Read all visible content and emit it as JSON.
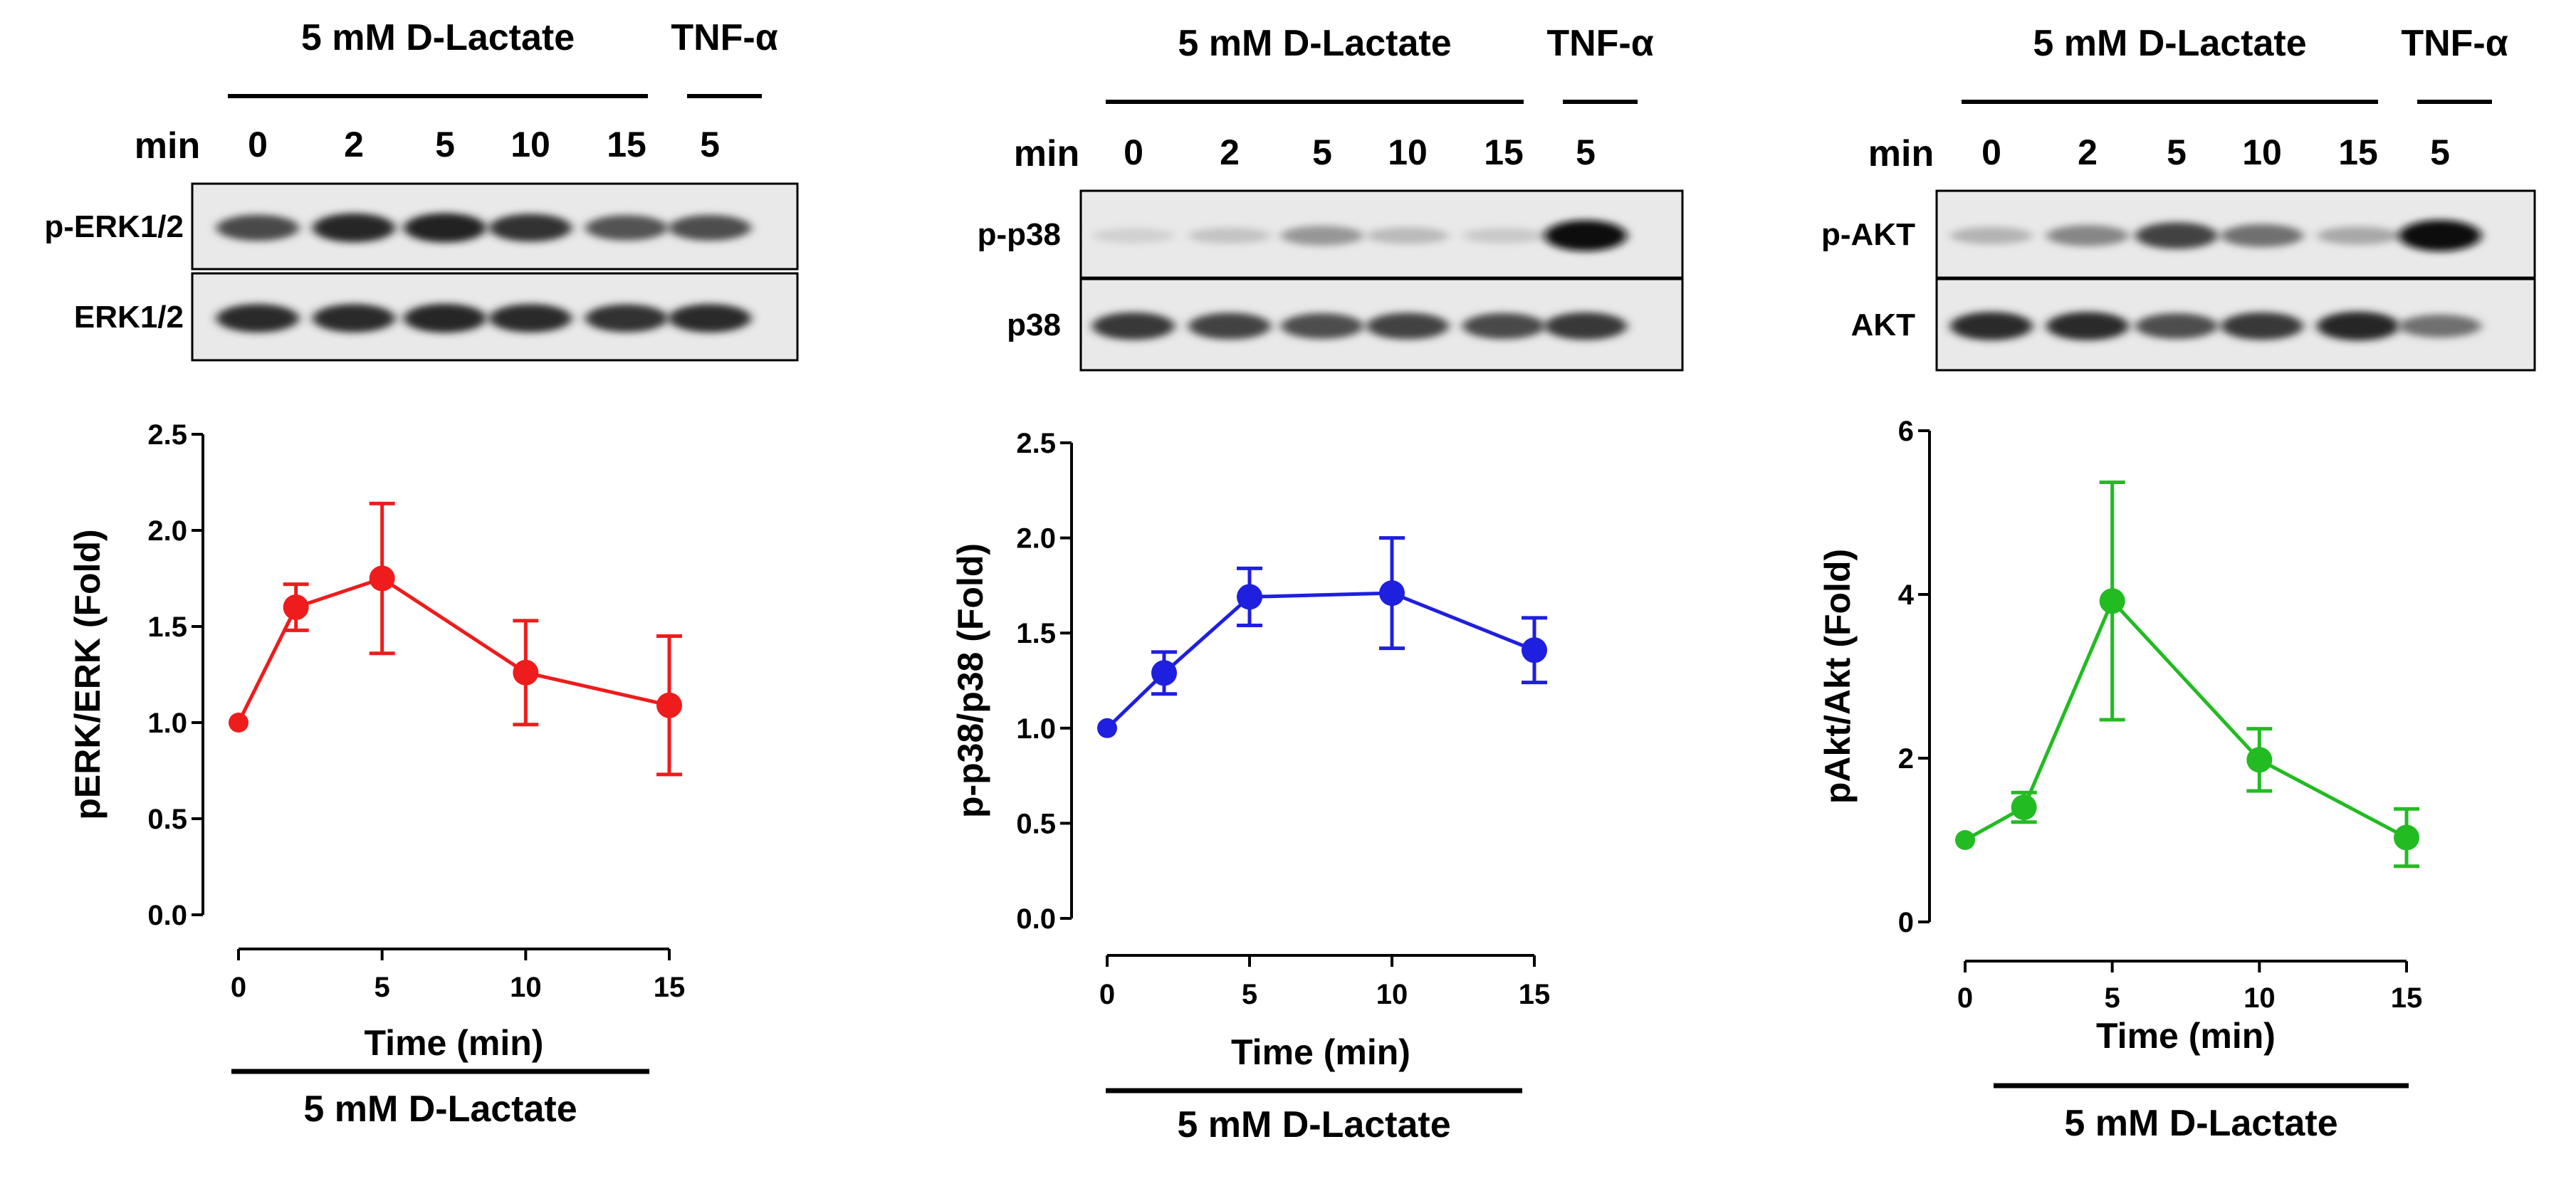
{
  "colors": {
    "erk": "#ee1c1c",
    "p38": "#1f1fe0",
    "akt": "#22bb22",
    "ink": "#000000"
  },
  "panels": [
    {
      "id": "erk",
      "blot": {
        "treatment_label": "5 mM D-Lactate",
        "control_label": "TNF-α",
        "min_label": "min",
        "lanes": [
          "0",
          "2",
          "5",
          "10",
          "15",
          "5"
        ],
        "rows": [
          {
            "label": "p-ERK1/2",
            "intensity": [
              0.72,
              0.88,
              0.9,
              0.82,
              0.68,
              0.7
            ]
          },
          {
            "label": "ERK1/2",
            "intensity": [
              0.85,
              0.85,
              0.88,
              0.85,
              0.82,
              0.85
            ]
          }
        ]
      }
    },
    {
      "id": "p38",
      "blot": {
        "treatment_label": "5 mM D-Lactate",
        "control_label": "TNF-α",
        "min_label": "min",
        "lanes": [
          "0",
          "2",
          "5",
          "10",
          "15",
          "5"
        ],
        "rows": [
          {
            "label": "p-p38",
            "intensity": [
              0.12,
              0.18,
              0.38,
              0.22,
              0.15,
              0.98
            ]
          },
          {
            "label": "p38",
            "intensity": [
              0.8,
              0.75,
              0.7,
              0.75,
              0.72,
              0.8
            ]
          }
        ]
      }
    },
    {
      "id": "akt",
      "blot": {
        "treatment_label": "5 mM D-Lactate",
        "control_label": "TNF-α",
        "min_label": "min",
        "lanes": [
          "0",
          "2",
          "5",
          "10",
          "15",
          "5"
        ],
        "rows": [
          {
            "label": "p-AKT",
            "intensity": [
              0.25,
              0.45,
              0.75,
              0.55,
              0.3,
              1.0
            ]
          },
          {
            "label": "AKT",
            "intensity": [
              0.85,
              0.85,
              0.7,
              0.8,
              0.88,
              0.55
            ]
          }
        ]
      }
    }
  ],
  "chart_data": [
    {
      "type": "line",
      "x": [
        0,
        2,
        5,
        10,
        15
      ],
      "series": [
        {
          "values": [
            1.0,
            1.6,
            1.75,
            1.26,
            1.09
          ],
          "errors": [
            0.0,
            0.12,
            0.39,
            0.27,
            0.36
          ]
        }
      ],
      "xlabel": "Time (min)",
      "ylabel": "pERK/ERK (Fold)",
      "xticks": [
        0,
        5,
        10,
        15
      ],
      "yticks": [
        0.0,
        0.5,
        1.0,
        1.5,
        2.0,
        2.5
      ],
      "xlim": [
        0,
        15
      ],
      "ylim": [
        0,
        2.5
      ],
      "bottom_label": "5 mM D-Lactate",
      "grid": false,
      "color": "#ee1c1c"
    },
    {
      "type": "line",
      "x": [
        0,
        2,
        5,
        10,
        15
      ],
      "series": [
        {
          "values": [
            1.0,
            1.29,
            1.69,
            1.71,
            1.41
          ],
          "errors": [
            0.0,
            0.11,
            0.15,
            0.29,
            0.17
          ]
        }
      ],
      "xlabel": "Time (min)",
      "ylabel": "p-p38/p38 (Fold)",
      "xticks": [
        0,
        5,
        10,
        15
      ],
      "yticks": [
        0.0,
        0.5,
        1.0,
        1.5,
        2.0,
        2.5
      ],
      "xlim": [
        0,
        15
      ],
      "ylim": [
        0,
        2.5
      ],
      "bottom_label": "5 mM D-Lactate",
      "grid": false,
      "color": "#1f1fe0"
    },
    {
      "type": "line",
      "x": [
        0,
        2,
        5,
        10,
        15
      ],
      "series": [
        {
          "values": [
            1.0,
            1.4,
            3.92,
            1.98,
            1.03
          ],
          "errors": [
            0.0,
            0.18,
            1.45,
            0.38,
            0.35
          ]
        }
      ],
      "xlabel": "Time (min)",
      "ylabel": "pAkt/Akt (Fold)",
      "xticks": [
        0,
        5,
        10,
        15
      ],
      "yticks": [
        0,
        2,
        4,
        6
      ],
      "xlim": [
        0,
        15
      ],
      "ylim": [
        0,
        6
      ],
      "bottom_label": "5 mM D-Lactate",
      "grid": false,
      "color": "#22bb22"
    }
  ]
}
